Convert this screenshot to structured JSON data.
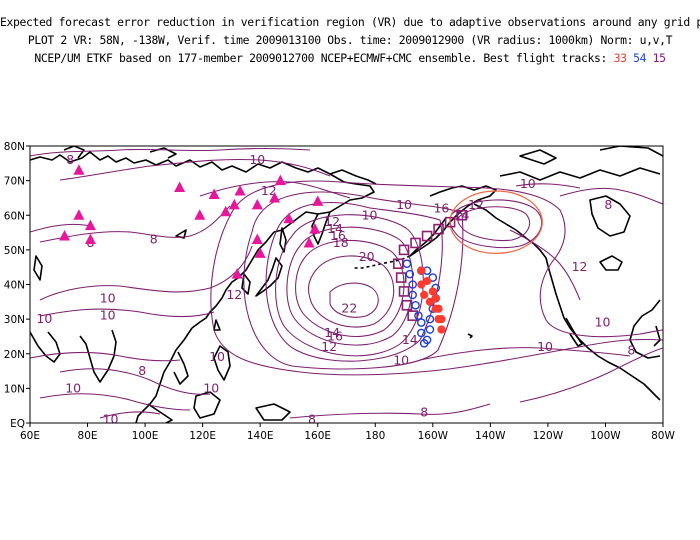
{
  "header": {
    "line1": "Expected forecast error reduction in verification region (VR) due to adaptive observations around any grid point.",
    "line2": "PLOT 2 VR: 58N, -138W, Verif. time 2009013100 Obs. time: 2009012900 (VR radius: 1000km) Norm: u,v,T",
    "line3_prefix": "NCEP/UM ETKF based on 177-member 2009012700 NCEP+ECMWF+CMC ensemble. Best flight tracks: ",
    "tracks": [
      {
        "id": "33",
        "color": "#ff3b30"
      },
      {
        "id": "54",
        "color": "#1f3fd9"
      },
      {
        "id": "15",
        "color": "#8b1f6e"
      }
    ]
  },
  "map": {
    "lon_ticks": [
      "60E",
      "80E",
      "100E",
      "120E",
      "140E",
      "160E",
      "180",
      "160W",
      "140W",
      "120W",
      "100W",
      "80W"
    ],
    "lat_ticks": [
      "EQ",
      "10N",
      "20N",
      "30N",
      "40N",
      "50N",
      "60N",
      "70N",
      "80N"
    ],
    "contour_color": "#7e1f70",
    "contour_labels": [
      {
        "text": "8",
        "lon": 74,
        "lat": 76
      },
      {
        "text": "10",
        "lon": 139,
        "lat": 76
      },
      {
        "text": "12",
        "lon": 143,
        "lat": 67
      },
      {
        "text": "8",
        "lon": 81,
        "lat": 52
      },
      {
        "text": "8",
        "lon": 103,
        "lat": 53
      },
      {
        "text": "10",
        "lon": 87,
        "lat": 36
      },
      {
        "text": "10",
        "lon": 87,
        "lat": 31
      },
      {
        "text": "10",
        "lon": 65,
        "lat": 30
      },
      {
        "text": "12",
        "lon": 131,
        "lat": 37
      },
      {
        "text": "10",
        "lon": 178,
        "lat": 60
      },
      {
        "text": "10",
        "lon": 190,
        "lat": 63
      },
      {
        "text": "12",
        "lon": 165,
        "lat": 58
      },
      {
        "text": "14",
        "lon": 166,
        "lat": 56
      },
      {
        "text": "16",
        "lon": 167,
        "lat": 54
      },
      {
        "text": "18",
        "lon": 168,
        "lat": 52
      },
      {
        "text": "20",
        "lon": 177,
        "lat": 48
      },
      {
        "text": "22",
        "lon": 171,
        "lat": 33
      },
      {
        "text": "16",
        "lon": 166,
        "lat": 25
      },
      {
        "text": "14",
        "lon": 165,
        "lat": 26
      },
      {
        "text": "12",
        "lon": 164,
        "lat": 22
      },
      {
        "text": "14",
        "lon": 192,
        "lat": 24
      },
      {
        "text": "10",
        "lon": 189,
        "lat": 18
      },
      {
        "text": "16",
        "lon": 203,
        "lat": 62
      },
      {
        "text": "14",
        "lon": 210,
        "lat": 60
      },
      {
        "text": "12",
        "lon": 215,
        "lat": 63
      },
      {
        "text": "10",
        "lon": 233,
        "lat": 69
      },
      {
        "text": "8",
        "lon": 261,
        "lat": 63
      },
      {
        "text": "12",
        "lon": 251,
        "lat": 45
      },
      {
        "text": "10",
        "lon": 259,
        "lat": 29
      },
      {
        "text": "10",
        "lon": 239,
        "lat": 22
      },
      {
        "text": "8",
        "lon": 269,
        "lat": 21
      },
      {
        "text": "8",
        "lon": 197,
        "lat": 3
      },
      {
        "text": "8",
        "lon": 158,
        "lat": 1
      },
      {
        "text": "10",
        "lon": 75,
        "lat": 10
      },
      {
        "text": "10",
        "lon": 88,
        "lat": 1
      },
      {
        "text": "10",
        "lon": 123,
        "lat": 10
      },
      {
        "text": "10",
        "lon": 125,
        "lat": 19
      },
      {
        "text": "8",
        "lon": 99,
        "lat": 15
      }
    ],
    "ships_triangles": [
      {
        "lon": 77,
        "lat": 73
      },
      {
        "lon": 72,
        "lat": 54
      },
      {
        "lon": 77,
        "lat": 60
      },
      {
        "lon": 81,
        "lat": 57
      },
      {
        "lon": 81,
        "lat": 53
      },
      {
        "lon": 112,
        "lat": 68
      },
      {
        "lon": 124,
        "lat": 66
      },
      {
        "lon": 133,
        "lat": 67
      },
      {
        "lon": 128,
        "lat": 61
      },
      {
        "lon": 131,
        "lat": 63
      },
      {
        "lon": 119,
        "lat": 60
      },
      {
        "lon": 139,
        "lat": 63
      },
      {
        "lon": 147,
        "lat": 70
      },
      {
        "lon": 145,
        "lat": 65
      },
      {
        "lon": 150,
        "lat": 59
      },
      {
        "lon": 160,
        "lat": 64
      },
      {
        "lon": 139,
        "lat": 53
      },
      {
        "lon": 140,
        "lat": 49
      },
      {
        "lon": 132,
        "lat": 43
      },
      {
        "lon": 157,
        "lat": 52
      },
      {
        "lon": 159,
        "lat": 56
      }
    ],
    "track_15": [
      [
        210,
        60
      ],
      [
        206,
        58
      ],
      [
        202,
        56
      ],
      [
        198,
        54
      ],
      [
        194,
        52
      ],
      [
        190,
        50
      ],
      [
        188,
        46
      ],
      [
        189,
        42
      ],
      [
        190,
        38
      ],
      [
        191,
        34
      ],
      [
        193,
        31
      ]
    ],
    "track_54": [
      [
        191,
        46
      ],
      [
        192,
        43
      ],
      [
        193,
        40
      ],
      [
        193,
        37
      ],
      [
        194,
        34
      ],
      [
        195,
        31
      ],
      [
        196,
        29
      ],
      [
        196,
        26
      ],
      [
        197,
        23
      ],
      [
        198,
        24
      ],
      [
        199,
        27
      ],
      [
        199,
        30
      ],
      [
        200,
        33
      ],
      [
        201,
        36
      ],
      [
        201,
        39
      ],
      [
        200,
        42
      ],
      [
        198,
        44
      ],
      [
        196,
        44
      ]
    ],
    "track_33": [
      [
        196,
        44
      ],
      [
        198,
        41
      ],
      [
        200,
        38
      ],
      [
        201,
        36
      ],
      [
        202,
        33
      ],
      [
        203,
        30
      ],
      [
        203,
        27
      ],
      [
        202,
        30
      ],
      [
        201,
        33
      ],
      [
        199,
        35
      ],
      [
        197,
        37
      ],
      [
        196,
        40
      ]
    ],
    "verification_region": {
      "center_lon": 222,
      "center_lat": 58,
      "radius_km": 1000,
      "color": "#ef6a48"
    }
  }
}
